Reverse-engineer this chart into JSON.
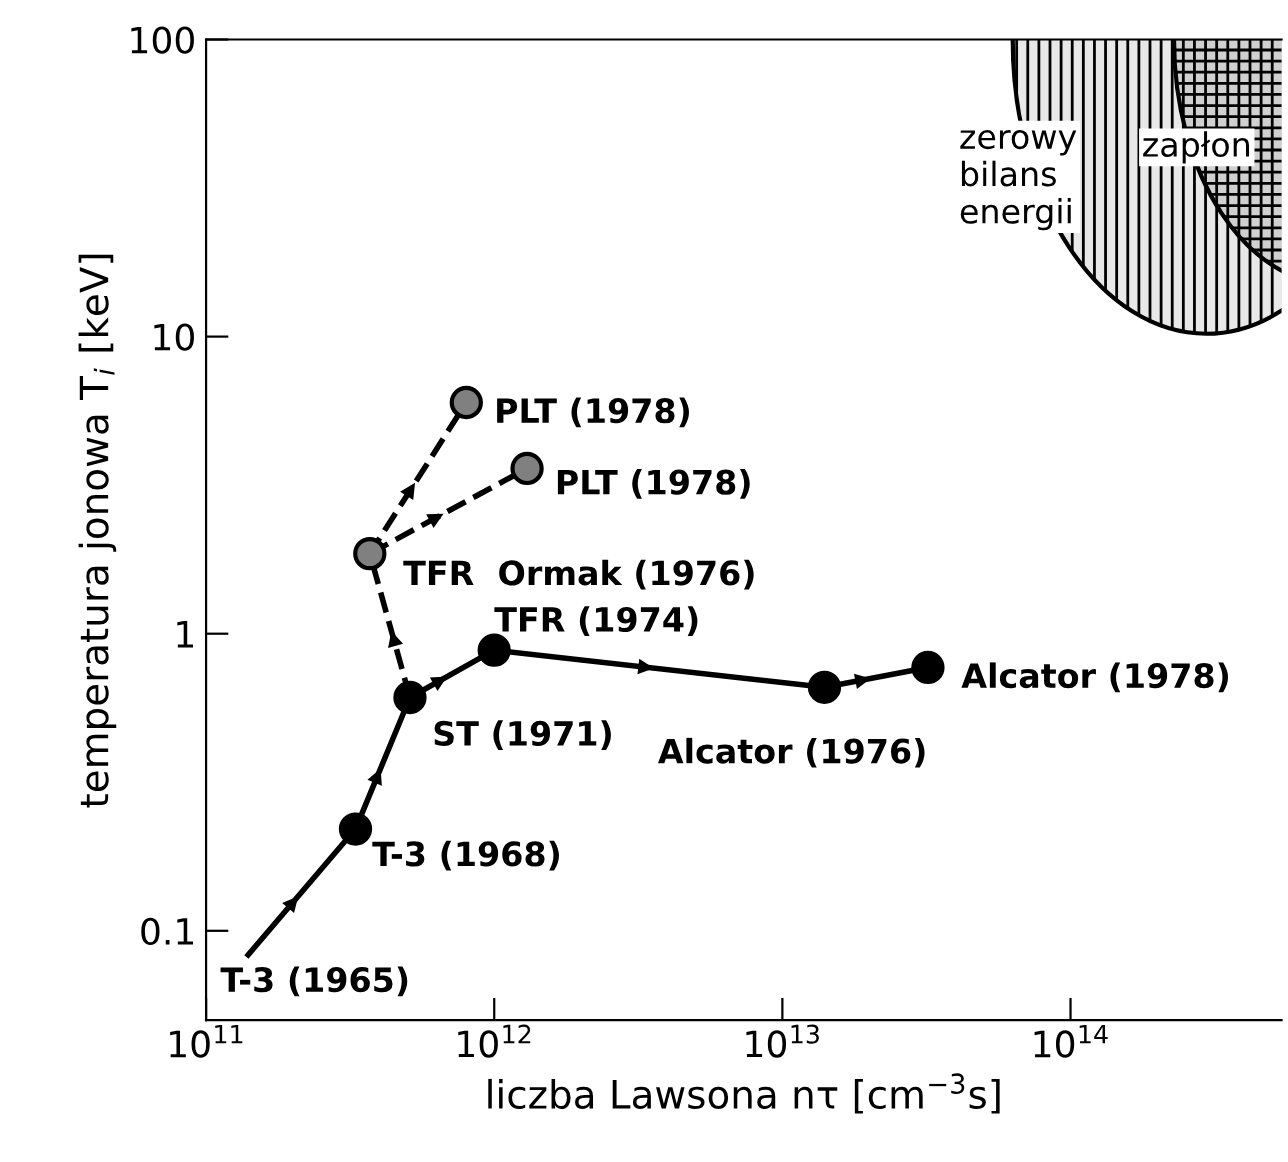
{
  "chart_data": {
    "type": "line",
    "xlabel": "liczba Lawsona nτ [cm$^{−3}$s]",
    "ylabel": "temperatura jonowa T$_{i}$ [keV]",
    "log": "xy",
    "grid": false,
    "xlim": [
      100000000000.0,
      540000000000000.0
    ],
    "ylim": [
      0.05,
      100
    ],
    "xticks": [
      {
        "value": 100000000000.0,
        "label": "10$^{11}$"
      },
      {
        "value": 1000000000000.0,
        "label": "10$^{12}$"
      },
      {
        "value": 10000000000000.0,
        "label": "10$^{13}$"
      },
      {
        "value": 100000000000000.0,
        "label": "10$^{14}$"
      }
    ],
    "yticks": [
      0.1,
      1,
      10,
      100
    ],
    "series": [
      {
        "color": "#000000",
        "line_style": "solid",
        "marker": "none",
        "x": [
          140000000000.0,
          330000000000.0,
          510000000000.0,
          1000000000000.0,
          14000000000000.0,
          32000000000000.0
        ],
        "values": [
          0.083,
          0.22,
          0.61,
          0.88,
          0.66,
          0.77
        ]
      },
      {
        "color": "#000000",
        "line_style": "dashed",
        "marker": "none",
        "x": [
          510000000000.0,
          370000000000.0,
          800000000000.0
        ],
        "values": [
          0.61,
          1.86,
          6.0
        ]
      },
      {
        "color": "#000000",
        "line_style": "dashed",
        "marker": "none",
        "x": [
          370000000000.0,
          1300000000000.0
        ],
        "values": [
          1.86,
          3.6
        ]
      },
      {
        "type": "scatter",
        "color": "#000000",
        "marker": "circle",
        "x": [
          330000000000.0,
          510000000000.0,
          1000000000000.0,
          14000000000000.0,
          32000000000000.0
        ],
        "values": [
          0.22,
          0.61,
          0.88,
          0.66,
          0.77
        ]
      },
      {
        "type": "scatter",
        "color": "#808080",
        "marker": "circle",
        "x": [
          370000000000.0,
          800000000000.0,
          1300000000000.0
        ],
        "values": [
          1.86,
          6.0,
          3.6
        ]
      }
    ],
    "annotations": [
      {
        "text": "T-3 (1965)",
        "x": 140000000000.0,
        "y": 0.083
      },
      {
        "text": "T-3 (1968)",
        "x": 330000000000.0,
        "y": 0.22
      },
      {
        "text": "ST (1971)",
        "x": 510000000000.0,
        "y": 0.61
      },
      {
        "text": "TFR (1974)",
        "x": 1000000000000.0,
        "y": 0.88
      },
      {
        "text": "Alcator (1976)",
        "x": 14000000000000.0,
        "y": 0.66
      },
      {
        "text": "Alcator (1978)",
        "x": 32000000000000.0,
        "y": 0.77
      },
      {
        "text": "TFR  Ormak (1976)",
        "x": 370000000000.0,
        "y": 1.86
      },
      {
        "text": "PLT (1978)",
        "x": 800000000000.0,
        "y": 6.0
      },
      {
        "text": "PLT (1978)",
        "x": 1300000000000.0,
        "y": 3.6
      },
      "zerowy\nbilans\nenergii",
      "zapłon"
    ]
  }
}
